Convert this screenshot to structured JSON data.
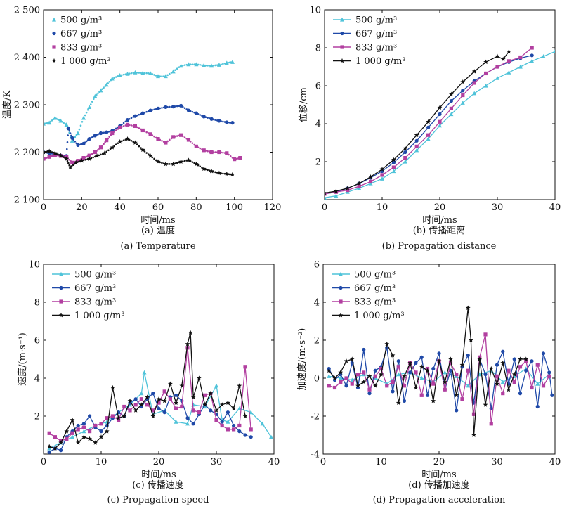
{
  "colors": {
    "series": [
      "#4fc3d9",
      "#1f49a8",
      "#b23fa0",
      "#111111"
    ],
    "axis": "#111111"
  },
  "chart_data": [
    {
      "type": "scatter",
      "caption_cn": "(a) 温度",
      "caption_en": "(a) Temperature",
      "xlabel": "时间/ms",
      "ylabel": "温度/K",
      "xlim": [
        0,
        120
      ],
      "ylim": [
        2100,
        2500
      ],
      "xticks": [
        0,
        20,
        40,
        60,
        80,
        100,
        120
      ],
      "yticks": [
        2100,
        2200,
        2300,
        2400,
        2500
      ],
      "ytick_labels": [
        "2 100",
        "2 200",
        "2 300",
        "2 400",
        "2 500"
      ],
      "grid": false,
      "legend": "top-left",
      "legend_entries": [
        "500 g/m³",
        "667 g/m³",
        "833 g/m³",
        "1 000 g/m³"
      ],
      "series": [
        {
          "x": [
            0,
            3,
            6,
            9,
            12,
            15,
            18,
            21,
            24,
            27,
            30,
            33,
            36,
            40,
            44,
            48,
            52,
            56,
            60,
            64,
            68,
            72,
            76,
            80,
            84,
            88,
            92,
            96,
            99
          ],
          "y": [
            2260,
            2262,
            2272,
            2266,
            2258,
            2224,
            2240,
            2272,
            2295,
            2318,
            2330,
            2342,
            2355,
            2362,
            2365,
            2368,
            2367,
            2366,
            2360,
            2360,
            2370,
            2382,
            2385,
            2385,
            2383,
            2382,
            2384,
            2388,
            2390
          ]
        },
        {
          "x": [
            0,
            3,
            6,
            9,
            12,
            13,
            15,
            18,
            21,
            24,
            27,
            30,
            33,
            36,
            40,
            44,
            48,
            52,
            56,
            60,
            64,
            68,
            72,
            76,
            80,
            84,
            88,
            92,
            96,
            99
          ],
          "y": [
            2200,
            2198,
            2196,
            2193,
            2192,
            2250,
            2230,
            2215,
            2218,
            2228,
            2235,
            2240,
            2242,
            2245,
            2255,
            2268,
            2276,
            2282,
            2288,
            2292,
            2295,
            2296,
            2298,
            2288,
            2282,
            2275,
            2270,
            2266,
            2263,
            2262
          ]
        },
        {
          "x": [
            0,
            3,
            6,
            9,
            12,
            15,
            18,
            21,
            24,
            27,
            30,
            33,
            36,
            40,
            44,
            48,
            52,
            56,
            60,
            64,
            68,
            72,
            76,
            80,
            84,
            88,
            92,
            96,
            100,
            103
          ],
          "y": [
            2186,
            2190,
            2194,
            2192,
            2190,
            2178,
            2182,
            2188,
            2193,
            2200,
            2210,
            2225,
            2240,
            2252,
            2258,
            2255,
            2246,
            2238,
            2228,
            2220,
            2232,
            2236,
            2226,
            2212,
            2204,
            2200,
            2200,
            2198,
            2185,
            2188
          ]
        },
        {
          "x": [
            0,
            3,
            6,
            9,
            12,
            14,
            17,
            20,
            24,
            28,
            32,
            36,
            40,
            44,
            48,
            52,
            56,
            60,
            64,
            68,
            72,
            76,
            80,
            84,
            88,
            92,
            96,
            99
          ],
          "y": [
            2200,
            2202,
            2198,
            2193,
            2186,
            2168,
            2178,
            2182,
            2186,
            2192,
            2198,
            2210,
            2222,
            2228,
            2220,
            2205,
            2192,
            2180,
            2175,
            2175,
            2180,
            2183,
            2175,
            2165,
            2160,
            2156,
            2154,
            2153
          ]
        }
      ]
    },
    {
      "type": "line",
      "caption_cn": "(b) 传播距离",
      "caption_en": "(b) Propagation distance",
      "xlabel": "时间/ms",
      "ylabel": "位移/cm",
      "xlim": [
        0,
        40
      ],
      "ylim": [
        0,
        10
      ],
      "xticks": [
        0,
        10,
        20,
        30,
        40
      ],
      "yticks": [
        2,
        4,
        6,
        8,
        10
      ],
      "grid": false,
      "legend": "top-left",
      "legend_entries": [
        "500 g/m³",
        "667 g/m³",
        "833 g/m³",
        "1 000 g/m³"
      ],
      "series": [
        {
          "x": [
            0,
            2,
            4,
            6,
            8,
            10,
            12,
            14,
            16,
            18,
            20,
            22,
            24,
            26,
            28,
            30,
            32,
            34,
            36,
            38,
            40
          ],
          "y": [
            0.1,
            0.2,
            0.4,
            0.6,
            0.85,
            1.1,
            1.5,
            2.0,
            2.6,
            3.2,
            3.9,
            4.5,
            5.1,
            5.6,
            6.0,
            6.4,
            6.7,
            7.0,
            7.3,
            7.55,
            7.8
          ]
        },
        {
          "x": [
            0,
            2,
            4,
            6,
            8,
            10,
            12,
            14,
            16,
            18,
            20,
            22,
            24,
            26,
            28,
            30,
            32,
            34,
            36
          ],
          "y": [
            0.3,
            0.4,
            0.6,
            0.85,
            1.15,
            1.5,
            1.95,
            2.5,
            3.1,
            3.8,
            4.5,
            5.2,
            5.75,
            6.25,
            6.65,
            7.0,
            7.25,
            7.45,
            7.6
          ]
        },
        {
          "x": [
            0,
            2,
            4,
            6,
            8,
            10,
            12,
            14,
            16,
            18,
            20,
            22,
            24,
            26,
            28,
            30,
            32,
            34,
            36
          ],
          "y": [
            0.3,
            0.4,
            0.5,
            0.7,
            0.95,
            1.3,
            1.7,
            2.2,
            2.8,
            3.4,
            4.1,
            4.8,
            5.5,
            6.15,
            6.65,
            7.0,
            7.3,
            7.5,
            8.0
          ]
        },
        {
          "x": [
            0,
            2,
            4,
            6,
            8,
            10,
            12,
            14,
            16,
            18,
            20,
            22,
            24,
            26,
            28,
            30,
            31,
            32
          ],
          "y": [
            0.35,
            0.45,
            0.6,
            0.85,
            1.2,
            1.6,
            2.1,
            2.7,
            3.4,
            4.1,
            4.85,
            5.55,
            6.2,
            6.75,
            7.25,
            7.55,
            7.4,
            7.8
          ]
        }
      ]
    },
    {
      "type": "line",
      "caption_cn": "(c) 传播速度",
      "caption_en": "(c) Propagation speed",
      "xlabel": "时间/ms",
      "ylabel": "速度/(m·s⁻¹)",
      "xlim": [
        0,
        40
      ],
      "ylim": [
        0,
        10
      ],
      "xticks": [
        0,
        10,
        20,
        30,
        40
      ],
      "yticks": [
        2,
        4,
        6,
        8,
        10
      ],
      "grid": false,
      "legend": "top-left",
      "legend_entries": [
        "500 g/m³",
        "667 g/m³",
        "833 g/m³",
        "1 000 g/m³"
      ],
      "series": [
        {
          "x": [
            1,
            3,
            5,
            7,
            9,
            11,
            13,
            15,
            17,
            17.5,
            19,
            21,
            23,
            25,
            26,
            28,
            30,
            31,
            32,
            34,
            36,
            38,
            39.5
          ],
          "y": [
            0.3,
            0.6,
            0.9,
            1.2,
            1.5,
            1.7,
            2.2,
            2.6,
            3.2,
            4.3,
            2.1,
            2.3,
            1.7,
            1.6,
            2.6,
            2.5,
            3.6,
            1.8,
            1.7,
            2.4,
            2.2,
            1.6,
            0.9
          ]
        },
        {
          "x": [
            1,
            2,
            3,
            4,
            5,
            6,
            7,
            8,
            9,
            10,
            11,
            12,
            13,
            14,
            15,
            16,
            17,
            18,
            19,
            20,
            21,
            22,
            23,
            24,
            25,
            26,
            27,
            28,
            29,
            30,
            31,
            32,
            33,
            34,
            35,
            36
          ],
          "y": [
            0.1,
            0.3,
            0.2,
            0.9,
            1.2,
            1.5,
            1.6,
            2.0,
            1.4,
            1.2,
            1.5,
            1.9,
            2.2,
            2.0,
            2.7,
            2.9,
            2.5,
            2.9,
            3.2,
            2.4,
            2.2,
            3.0,
            3.1,
            2.8,
            1.9,
            1.6,
            2.1,
            2.6,
            2.3,
            2.1,
            1.7,
            2.2,
            1.5,
            1.2,
            1.0,
            0.9
          ]
        },
        {
          "x": [
            1,
            2,
            3,
            4,
            5,
            6,
            7,
            8,
            9,
            10,
            11,
            12,
            13,
            14,
            15,
            16,
            17,
            18,
            19,
            20,
            21,
            22,
            23,
            24,
            25,
            26,
            27,
            28,
            29,
            30,
            31,
            32,
            33,
            34,
            35,
            36
          ],
          "y": [
            1.1,
            0.9,
            0.7,
            0.8,
            1.1,
            1.3,
            1.4,
            1.2,
            1.5,
            1.6,
            1.9,
            2.0,
            1.8,
            2.5,
            2.3,
            2.6,
            2.9,
            2.6,
            2.3,
            2.7,
            3.3,
            2.9,
            2.4,
            2.5,
            5.6,
            2.3,
            2.2,
            3.1,
            3.2,
            1.8,
            1.5,
            1.3,
            1.3,
            1.5,
            4.6,
            1.3
          ]
        },
        {
          "x": [
            1,
            2,
            3,
            4,
            5,
            6,
            7,
            8,
            9,
            10,
            11,
            12,
            13,
            14,
            15,
            16,
            17,
            18,
            19,
            20,
            21,
            22,
            23,
            24,
            25,
            25.5,
            26,
            27,
            28,
            29,
            30,
            31,
            32,
            33,
            34,
            35
          ],
          "y": [
            0.4,
            0.3,
            0.6,
            1.2,
            1.8,
            0.6,
            0.9,
            0.8,
            0.6,
            0.9,
            1.2,
            3.5,
            1.9,
            2.0,
            2.8,
            2.3,
            2.6,
            3.0,
            2.0,
            2.9,
            2.8,
            3.7,
            2.7,
            3.6,
            5.8,
            6.4,
            3.0,
            4.0,
            2.6,
            3.2,
            2.3,
            2.6,
            2.7,
            2.4,
            3.6,
            2.0
          ]
        }
      ]
    },
    {
      "type": "line",
      "caption_cn": "(d) 传播加速度",
      "caption_en": "(d) Propagation acceleration",
      "xlabel": "时间/ms",
      "ylabel": "加速度/(m·s⁻²)",
      "xlim": [
        0,
        40
      ],
      "ylim": [
        -4,
        6
      ],
      "xticks": [
        0,
        10,
        20,
        30,
        40
      ],
      "yticks": [
        -4,
        -2,
        0,
        2,
        4,
        6
      ],
      "grid": false,
      "legend": "top-left",
      "legend_entries": [
        "500 g/m³",
        "667 g/m³",
        "833 g/m³",
        "1 000 g/m³"
      ],
      "series": [
        {
          "x": [
            1,
            3,
            5,
            7,
            9,
            11,
            13,
            15,
            17,
            19,
            21,
            23,
            25,
            27,
            29,
            31,
            33,
            35,
            37,
            39
          ],
          "y": [
            0.1,
            0,
            -0.1,
            0.2,
            0,
            -0.3,
            0.2,
            0.3,
            0,
            -0.2,
            0.3,
            0.1,
            -0.4,
            0.2,
            0.4,
            -0.2,
            0.1,
            0.5,
            -0.3,
            0.2
          ]
        },
        {
          "x": [
            1,
            2,
            3,
            4,
            5,
            6,
            7,
            8,
            9,
            10,
            11,
            12,
            13,
            14,
            15,
            16,
            17,
            18,
            19,
            20,
            21,
            22,
            23,
            24,
            25,
            26,
            27,
            28,
            29,
            30,
            31,
            32,
            33,
            34,
            35,
            36,
            37,
            38,
            39,
            39.5
          ],
          "y": [
            0.5,
            -0.1,
            0.2,
            -0.4,
            0.8,
            -0.5,
            1.5,
            -0.8,
            0.4,
            0.6,
            1.6,
            -0.7,
            0.9,
            -1.2,
            0.3,
            0.8,
            1.1,
            -0.9,
            0.5,
            1.3,
            -0.6,
            0.4,
            -1.7,
            0.6,
            1.2,
            -1.3,
            1.0,
            0.2,
            -1.6,
            0.7,
            1.4,
            -0.3,
            1.0,
            -0.8,
            0.4,
            0.9,
            -1.5,
            1.3,
            0.3,
            -0.9
          ]
        },
        {
          "x": [
            1,
            2,
            3,
            4,
            5,
            6,
            7,
            8,
            9,
            10,
            11,
            12,
            13,
            14,
            15,
            16,
            17,
            18,
            19,
            20,
            21,
            22,
            23,
            24,
            25,
            26,
            27,
            28,
            29,
            30,
            31,
            32,
            33,
            34,
            35,
            36,
            37,
            38,
            39
          ],
          "y": [
            -0.4,
            -0.5,
            -0.2,
            0,
            -0.3,
            0.2,
            0.3,
            -0.6,
            0.1,
            0.5,
            -0.4,
            -0.2,
            0.6,
            -0.4,
            0.8,
            0.3,
            -0.9,
            0.5,
            -0.3,
            0.9,
            -0.6,
            0.8,
            0.2,
            -1.1,
            0.4,
            -1.9,
            1.1,
            2.3,
            -2.4,
            0.1,
            -0.8,
            0.4,
            -0.2,
            0.6,
            0.9,
            -0.5,
            0.7,
            -0.4,
            0.1
          ]
        },
        {
          "x": [
            1,
            2,
            3,
            4,
            5,
            6,
            7,
            8,
            9,
            10,
            11,
            12,
            13,
            14,
            15,
            16,
            17,
            18,
            19,
            20,
            21,
            22,
            23,
            24,
            25,
            25.5,
            26,
            27,
            28,
            29,
            30,
            31,
            32,
            33,
            34,
            35
          ],
          "y": [
            0.4,
            0,
            0.3,
            0.9,
            1.0,
            -0.4,
            -0.2,
            0.1,
            -0.4,
            0.2,
            1.8,
            1.2,
            -1.3,
            0.1,
            0.8,
            -0.5,
            0.6,
            0.4,
            -1.2,
            0.9,
            -0.2,
            1.0,
            -0.9,
            0.7,
            3.7,
            2.0,
            -3.0,
            1.0,
            -1.4,
            0.5,
            -0.3,
            0.8,
            -0.6,
            0.2,
            1.0,
            1.0
          ]
        }
      ]
    }
  ]
}
